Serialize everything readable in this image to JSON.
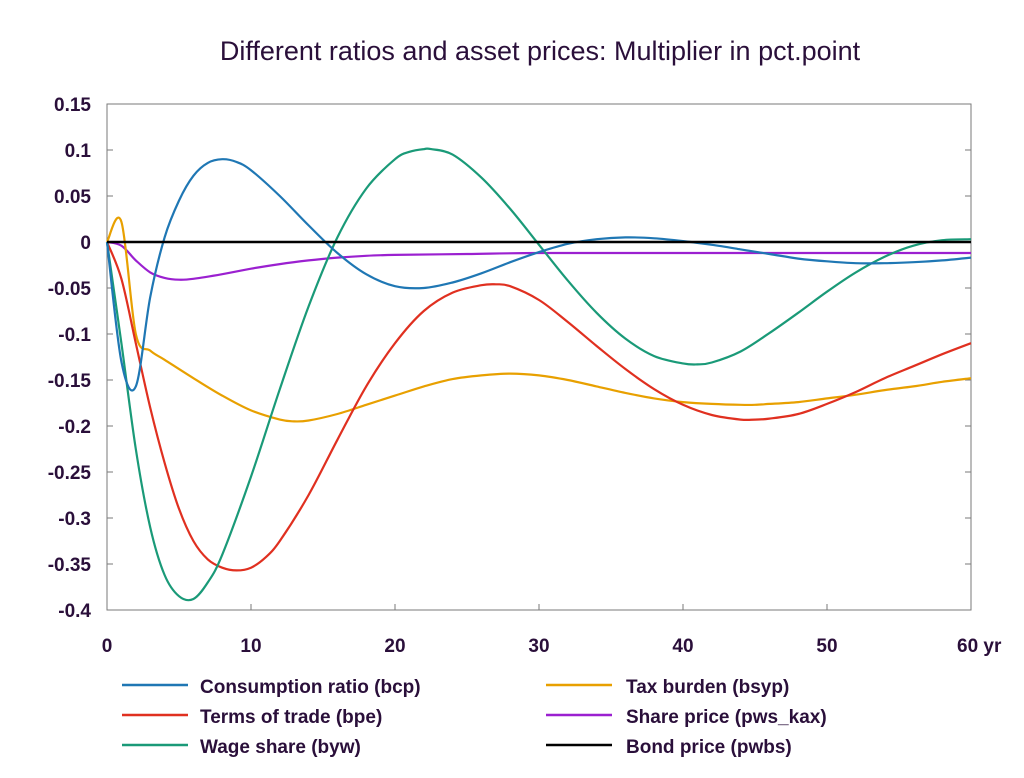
{
  "chart_data": {
    "type": "line",
    "title": "Different ratios and asset prices: Multiplier in pct.point",
    "xlabel": "",
    "ylabel": "",
    "xlim": [
      0,
      60
    ],
    "ylim": [
      -0.4,
      0.15
    ],
    "x_ticks": [
      0,
      10,
      20,
      30,
      40,
      50,
      60
    ],
    "x_tick_labels": [
      "0",
      "10",
      "20",
      "30",
      "40",
      "50",
      "60 yr"
    ],
    "y_ticks": [
      0.15,
      0.1,
      0.05,
      0,
      -0.05,
      -0.1,
      -0.15,
      -0.2,
      -0.25,
      -0.3,
      -0.35,
      -0.4
    ],
    "y_tick_labels": [
      "0.15",
      "0.1",
      "0.05",
      "0",
      "-0.05",
      "-0.1",
      "-0.15",
      "-0.2",
      "-0.25",
      "-0.3",
      "-0.35",
      "-0.4"
    ],
    "grid": false,
    "legend_position": "bottom",
    "series": [
      {
        "name": "Consumption ratio (bcp)",
        "color": "#1f77b4",
        "x": [
          0,
          1,
          2,
          3,
          4,
          5,
          6,
          7,
          8,
          9,
          10,
          12,
          14,
          16,
          18,
          20,
          22,
          24,
          26,
          28,
          30,
          32,
          34,
          36,
          38,
          40,
          42,
          44,
          46,
          48,
          50,
          52,
          54,
          56,
          58,
          60
        ],
        "y": [
          0,
          -0.13,
          -0.157,
          -0.06,
          0.005,
          0.045,
          0.072,
          0.086,
          0.09,
          0.087,
          0.078,
          0.05,
          0.018,
          -0.012,
          -0.035,
          -0.048,
          -0.05,
          -0.044,
          -0.034,
          -0.022,
          -0.011,
          -0.002,
          0.003,
          0.005,
          0.004,
          0.001,
          -0.003,
          -0.008,
          -0.013,
          -0.018,
          -0.021,
          -0.023,
          -0.023,
          -0.022,
          -0.02,
          -0.017
        ]
      },
      {
        "name": "Terms of trade (bpe)",
        "color": "#e03020",
        "x": [
          0,
          1,
          2,
          3,
          4,
          5,
          6,
          7,
          8,
          9,
          10,
          11,
          12,
          14,
          16,
          18,
          20,
          22,
          24,
          26,
          27,
          28,
          30,
          32,
          34,
          36,
          38,
          40,
          42,
          44,
          45,
          46,
          48,
          50,
          52,
          54,
          56,
          58,
          60
        ],
        "y": [
          0,
          -0.04,
          -0.11,
          -0.18,
          -0.24,
          -0.29,
          -0.325,
          -0.345,
          -0.354,
          -0.357,
          -0.354,
          -0.343,
          -0.325,
          -0.275,
          -0.215,
          -0.157,
          -0.11,
          -0.075,
          -0.055,
          -0.047,
          -0.046,
          -0.048,
          -0.063,
          -0.087,
          -0.113,
          -0.138,
          -0.16,
          -0.177,
          -0.188,
          -0.193,
          -0.193,
          -0.192,
          -0.187,
          -0.176,
          -0.163,
          -0.148,
          -0.135,
          -0.122,
          -0.11
        ]
      },
      {
        "name": "Wage share (byw)",
        "color": "#1a9a78",
        "x": [
          0,
          1,
          2,
          3,
          4,
          5,
          6,
          7,
          8,
          10,
          12,
          14,
          16,
          18,
          20,
          21,
          22,
          22.5,
          24,
          26,
          28,
          30,
          32,
          34,
          36,
          38,
          40,
          41,
          42,
          44,
          46,
          48,
          50,
          52,
          54,
          56,
          58,
          60
        ],
        "y": [
          0,
          -0.11,
          -0.225,
          -0.31,
          -0.362,
          -0.385,
          -0.388,
          -0.37,
          -0.34,
          -0.255,
          -0.16,
          -0.07,
          0.005,
          0.058,
          0.09,
          0.098,
          0.101,
          0.101,
          0.095,
          0.07,
          0.036,
          -0.003,
          -0.042,
          -0.077,
          -0.105,
          -0.124,
          -0.132,
          -0.133,
          -0.131,
          -0.119,
          -0.099,
          -0.077,
          -0.054,
          -0.033,
          -0.016,
          -0.004,
          0.002,
          0.003
        ]
      },
      {
        "name": "Tax burden (bsyp)",
        "color": "#e8a000",
        "x": [
          0,
          1,
          2,
          3,
          4,
          6,
          8,
          10,
          12,
          13,
          14,
          16,
          18,
          20,
          22,
          24,
          26,
          28,
          30,
          32,
          34,
          36,
          38,
          40,
          42,
          44,
          45,
          46,
          48,
          50,
          52,
          54,
          56,
          58,
          60
        ],
        "y": [
          0,
          0.022,
          -0.1,
          -0.118,
          -0.128,
          -0.148,
          -0.167,
          -0.183,
          -0.193,
          -0.195,
          -0.194,
          -0.187,
          -0.177,
          -0.167,
          -0.157,
          -0.149,
          -0.145,
          -0.143,
          -0.145,
          -0.15,
          -0.157,
          -0.164,
          -0.17,
          -0.174,
          -0.176,
          -0.177,
          -0.177,
          -0.176,
          -0.174,
          -0.17,
          -0.166,
          -0.161,
          -0.157,
          -0.152,
          -0.148
        ]
      },
      {
        "name": "Share price (pws_kax)",
        "color": "#9b20d0",
        "x": [
          0,
          1,
          2,
          3,
          4,
          5,
          6,
          8,
          10,
          12,
          14,
          16,
          18,
          20,
          25,
          30,
          40,
          50,
          60
        ],
        "y": [
          0,
          -0.004,
          -0.02,
          -0.033,
          -0.039,
          -0.041,
          -0.04,
          -0.035,
          -0.029,
          -0.024,
          -0.02,
          -0.017,
          -0.015,
          -0.014,
          -0.013,
          -0.012,
          -0.012,
          -0.012,
          -0.012
        ]
      },
      {
        "name": "Bond price (pwbs)",
        "color": "#000000",
        "x": [
          0,
          60
        ],
        "y": [
          0,
          0
        ]
      }
    ]
  }
}
